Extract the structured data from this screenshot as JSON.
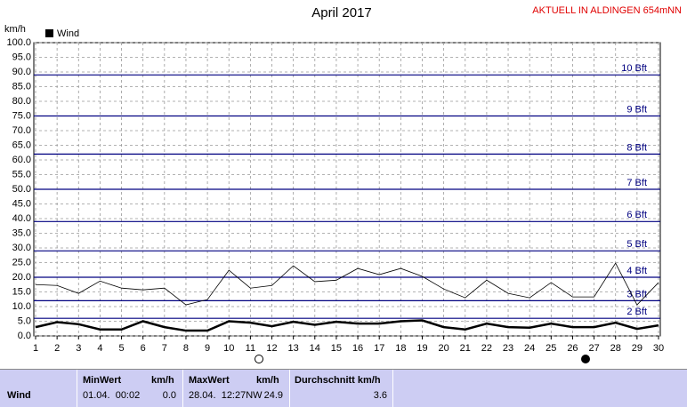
{
  "chart_data": {
    "type": "line",
    "title": "April 2017",
    "subtitle": "AKTUELL IN ALDINGEN 654mNN",
    "y_label": "km/h",
    "x": [
      1,
      2,
      3,
      4,
      5,
      6,
      7,
      8,
      9,
      10,
      11,
      12,
      13,
      14,
      15,
      16,
      17,
      18,
      19,
      20,
      21,
      22,
      23,
      24,
      25,
      26,
      27,
      28,
      29,
      30
    ],
    "series": [
      {
        "name": "Wind",
        "color": "#000000",
        "width": 2.5,
        "values": [
          3.0,
          4.7,
          4.0,
          2.2,
          2.2,
          5.0,
          3.0,
          1.8,
          1.8,
          5.0,
          4.5,
          3.3,
          4.8,
          3.8,
          4.8,
          4.2,
          4.2,
          5.0,
          5.3,
          3.0,
          2.2,
          4.2,
          3.0,
          2.8,
          4.2,
          3.0,
          3.0,
          4.5,
          2.4,
          3.6
        ]
      },
      {
        "color": "#000000",
        "width": 0.8,
        "values": [
          17.5,
          17.2,
          14.5,
          18.7,
          16.3,
          15.7,
          16.3,
          10.6,
          12.4,
          22.4,
          16.3,
          17.2,
          23.9,
          18.5,
          19.0,
          23.0,
          20.9,
          23.0,
          20.3,
          16.0,
          13.0,
          19.0,
          14.5,
          13.0,
          18.2,
          13.3,
          13.3,
          24.8,
          10.6,
          18.2
        ]
      }
    ],
    "beaufort": [
      {
        "value": 6,
        "label": "2 Bft"
      },
      {
        "value": 12,
        "label": "3 Bft"
      },
      {
        "value": 20,
        "label": "4 Bft"
      },
      {
        "value": 29,
        "label": "5 Bft"
      },
      {
        "value": 39,
        "label": "6 Bft"
      },
      {
        "value": 50,
        "label": "7 Bft"
      },
      {
        "value": 62,
        "label": "8 Bft"
      },
      {
        "value": 75,
        "label": "9 Bft"
      },
      {
        "value": 89,
        "label": "10 Bft"
      }
    ],
    "beaufort_color": "#000080",
    "xlim": [
      1,
      30
    ],
    "xticks": [
      1,
      2,
      3,
      4,
      5,
      6,
      7,
      8,
      9,
      10,
      11,
      12,
      13,
      14,
      15,
      16,
      17,
      18,
      19,
      20,
      21,
      22,
      23,
      24,
      25,
      26,
      27,
      28,
      29,
      30
    ],
    "ylim": [
      0,
      100
    ],
    "yticks": [
      {
        "value": 0,
        "label": "0.0"
      },
      {
        "value": 5,
        "label": "5.0"
      },
      {
        "value": 10,
        "label": "10.0"
      },
      {
        "value": 15,
        "label": "15.0"
      },
      {
        "value": 20,
        "label": "20.0"
      },
      {
        "value": 25,
        "label": "25.0"
      },
      {
        "value": 30,
        "label": "30.0"
      },
      {
        "value": 35,
        "label": "35.0"
      },
      {
        "value": 40,
        "label": "40.0"
      },
      {
        "value": 45,
        "label": "45.0"
      },
      {
        "value": 50,
        "label": "50.0"
      },
      {
        "value": 55,
        "label": "55.0"
      },
      {
        "value": 60,
        "label": "60.0"
      },
      {
        "value": 65,
        "label": "65.0"
      },
      {
        "value": 70,
        "label": "70.0"
      },
      {
        "value": 75,
        "label": "75.0"
      },
      {
        "value": 80,
        "label": "80.0"
      },
      {
        "value": 85,
        "label": "85.0"
      },
      {
        "value": 90,
        "label": "90.0"
      },
      {
        "value": 95,
        "label": "95.0"
      },
      {
        "value": 100,
        "label": "100.0"
      }
    ],
    "grid": true
  },
  "footer": {
    "headers": [
      "MinWert",
      "km/h",
      "MaxWert",
      "km/h",
      "Durchschnitt km/h"
    ],
    "row": {
      "label": "Wind",
      "min_time": "01.04.  00:02",
      "min": "0.0",
      "max_time": "28.04.  12:27NW",
      "max": "24.9",
      "avg": "3.6"
    }
  }
}
